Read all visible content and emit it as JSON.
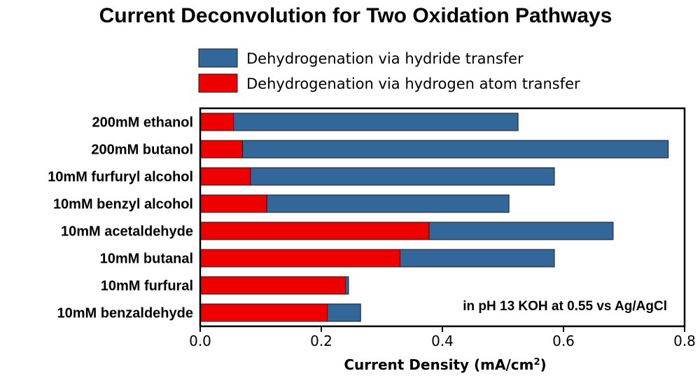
{
  "chart_data": {
    "type": "bar",
    "orientation": "horizontal",
    "stacked": true,
    "title": "Current Deconvolution for Two Oxidation Pathways",
    "xlabel": "Current Density (mA/cm",
    "xlabel_superscript": "2",
    "xlabel_suffix": ")",
    "ylabel": "",
    "xlim": [
      0,
      0.8
    ],
    "xticks": [
      "0.0",
      "0.2",
      "0.4",
      "0.6",
      "0.8"
    ],
    "grid": false,
    "legend_position": "top",
    "categories": [
      "200mM ethanol",
      "200mM butanol",
      "10mM furfuryl alcohol",
      "10mM benzyl alcohol",
      "10mM acetaldehyde",
      "10mM butanal",
      "10mM furfural",
      "10mM benzaldehyde"
    ],
    "series": [
      {
        "name": "Dehydrogenation via hydrogen atom transfer",
        "color": "#ee0000",
        "values": [
          0.055,
          0.07,
          0.083,
          0.11,
          0.378,
          0.33,
          0.24,
          0.21
        ]
      },
      {
        "name": "Dehydrogenation via hydride transfer",
        "color": "#336699",
        "values": [
          0.47,
          0.703,
          0.502,
          0.4,
          0.304,
          0.255,
          0.005,
          0.055
        ]
      }
    ],
    "legend_order": [
      1,
      0
    ],
    "annotation": "in pH 13 KOH at 0.55 vs Ag/AgCl"
  }
}
